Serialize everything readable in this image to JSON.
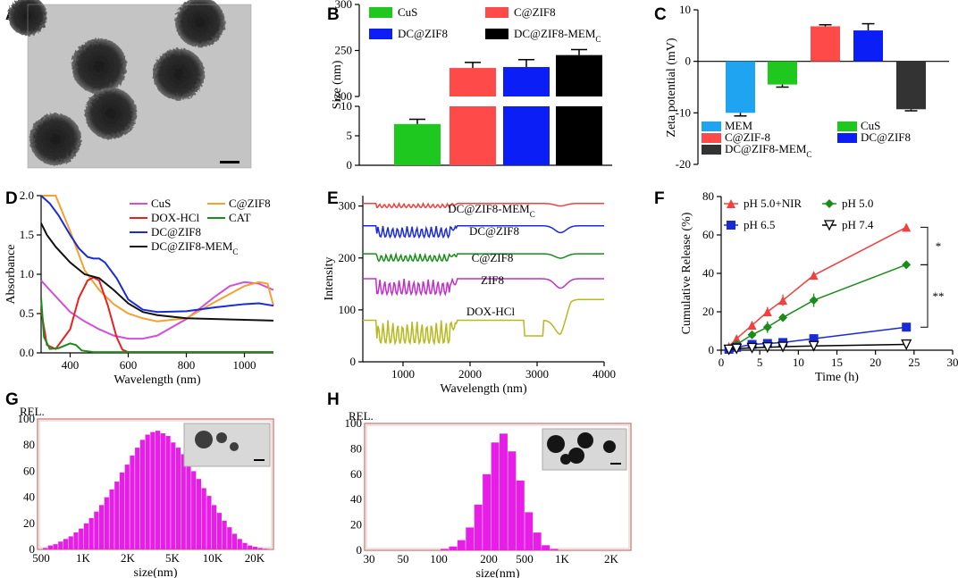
{
  "panels": {
    "A": "A",
    "B": "B",
    "C": "C",
    "D": "D",
    "E": "E",
    "F": "F",
    "G": "G",
    "H": "H"
  },
  "chart_data": [
    {
      "id": "B",
      "type": "bar",
      "categories": [
        "CuS",
        "C@ZIF8",
        "DC@ZIF8",
        "DC@ZIF8-MEMC"
      ],
      "values": [
        7,
        231,
        232,
        245
      ],
      "errors": [
        0.8,
        6,
        8,
        6
      ],
      "colors": [
        "#1ec81e",
        "#ff4a4a",
        "#0a1ef5",
        "#000000"
      ],
      "ylabel": "Size (nm)",
      "ybreak": {
        "lower": [
          0,
          10
        ],
        "upper": [
          200,
          300
        ]
      },
      "yticks_lower": [
        "0",
        "5",
        "10"
      ],
      "yticks_upper": [
        "200",
        "250",
        "300"
      ],
      "legend": [
        "CuS",
        "C@ZIF8",
        "DC@ZIF8",
        "DC@ZIF8-MEMC"
      ]
    },
    {
      "id": "C",
      "type": "bar",
      "categories": [
        "MEM",
        "CuS",
        "C@ZIF-8",
        "DC@ZIF8",
        "DC@ZIF8-MEMC"
      ],
      "values": [
        -10,
        -4.5,
        6.8,
        6,
        -9.3
      ],
      "errors": [
        0.6,
        0.5,
        0.3,
        1.3,
        0.3
      ],
      "colors": [
        "#1ea4f0",
        "#1ec81e",
        "#ff4a4a",
        "#0a1ef5",
        "#333333"
      ],
      "ylabel": "Zeta potential (mV)",
      "ylim": [
        -20,
        10
      ],
      "yticks": [
        "-20",
        "-10",
        "0",
        "10"
      ],
      "legend": [
        "MEM",
        "CuS",
        "C@ZIF-8",
        "DC@ZIF8",
        "DC@ZIF8-MEMC"
      ]
    },
    {
      "id": "D",
      "type": "line",
      "xlabel": "Wavelength (nm)",
      "ylabel": "Absorbance",
      "xlim": [
        300,
        1100
      ],
      "ylim": [
        0,
        2
      ],
      "xticks": [
        "400",
        "600",
        "800",
        "1000"
      ],
      "yticks": [
        "0.0",
        "0.5",
        "1.0",
        "1.5",
        "2.0"
      ],
      "series": [
        {
          "name": "CuS",
          "color": "#d050d8",
          "x": [
            300,
            350,
            400,
            450,
            500,
            550,
            600,
            650,
            700,
            800,
            900,
            950,
            1000,
            1050,
            1100
          ],
          "y": [
            0.92,
            0.72,
            0.52,
            0.4,
            0.3,
            0.22,
            0.18,
            0.18,
            0.22,
            0.43,
            0.72,
            0.85,
            0.9,
            0.88,
            0.8
          ]
        },
        {
          "name": "C@ZIF8",
          "color": "#f5a030",
          "x": [
            300,
            350,
            400,
            450,
            500,
            550,
            600,
            650,
            700,
            800,
            900,
            1000,
            1050,
            1080,
            1100
          ],
          "y": [
            2.0,
            2.0,
            1.55,
            1.05,
            0.8,
            0.62,
            0.5,
            0.44,
            0.4,
            0.44,
            0.65,
            0.85,
            0.9,
            0.88,
            0.6
          ]
        },
        {
          "name": "DOX-HCl",
          "color": "#ea2020",
          "x": [
            300,
            320,
            350,
            400,
            430,
            460,
            480,
            500,
            530,
            560,
            580,
            600,
            650,
            1100
          ],
          "y": [
            0.55,
            0.1,
            0.05,
            0.3,
            0.7,
            0.92,
            0.96,
            0.92,
            0.6,
            0.2,
            0.04,
            0.01,
            0.01,
            0.01
          ]
        },
        {
          "name": "CAT",
          "color": "#1a8c1a",
          "x": [
            300,
            310,
            330,
            360,
            400,
            420,
            440,
            480,
            1100
          ],
          "y": [
            0.7,
            0.2,
            0.05,
            0.06,
            0.12,
            0.1,
            0.03,
            0.01,
            0.01
          ]
        },
        {
          "name": "DC@ZIF8",
          "color": "#1a2ad8",
          "x": [
            300,
            330,
            360,
            400,
            430,
            460,
            480,
            500,
            520,
            560,
            600,
            650,
            700,
            800,
            900,
            1000,
            1050,
            1100
          ],
          "y": [
            2.0,
            1.9,
            1.75,
            1.5,
            1.33,
            1.22,
            1.2,
            1.2,
            1.15,
            0.95,
            0.68,
            0.55,
            0.52,
            0.53,
            0.58,
            0.62,
            0.63,
            0.6
          ]
        },
        {
          "name": "DC@ZIF8-MEMC",
          "color": "#111111",
          "x": [
            300,
            320,
            350,
            400,
            450,
            500,
            550,
            600,
            650,
            700,
            800,
            900,
            1000,
            1100
          ],
          "y": [
            1.65,
            1.5,
            1.35,
            1.15,
            1.0,
            0.95,
            0.8,
            0.63,
            0.52,
            0.48,
            0.44,
            0.43,
            0.42,
            0.41
          ]
        }
      ]
    },
    {
      "id": "E",
      "type": "line",
      "xlabel": "Wavelength (nm)",
      "ylabel": "Intensity",
      "xlim": [
        400,
        4000
      ],
      "ylim": [
        0,
        320
      ],
      "xticks": [
        "1000",
        "2000",
        "3000",
        "4000"
      ],
      "yticks": [
        "0",
        "100",
        "200",
        "300"
      ],
      "series": [
        {
          "name": "DC@ZIF8-MEMC",
          "color": "#f04040",
          "base": 305,
          "amp": 8
        },
        {
          "name": "DC@ZIF8",
          "color": "#1a2ad8",
          "base": 262,
          "amp": 22
        },
        {
          "name": "C@ZIF8",
          "color": "#1a8c1a",
          "base": 208,
          "amp": 14
        },
        {
          "name": "ZIF8",
          "color": "#c030c8",
          "base": 160,
          "amp": 30
        },
        {
          "name": "DOX-HCl",
          "color": "#b8b820",
          "base": 80,
          "amp": 45
        }
      ]
    },
    {
      "id": "F",
      "type": "line",
      "xlabel": "Time (h)",
      "ylabel": "Cumulative Release (%)",
      "xlim": [
        0,
        30
      ],
      "ylim": [
        0,
        80
      ],
      "xticks": [
        "0",
        "5",
        "10",
        "15",
        "20",
        "25",
        "30"
      ],
      "yticks": [
        "0",
        "20",
        "40",
        "60",
        "80"
      ],
      "x": [
        1,
        2,
        4,
        6,
        8,
        12,
        24
      ],
      "series": [
        {
          "name": "pH 5.0+NIR",
          "color": "#f04040",
          "marker": "triangle",
          "y": [
            2,
            6,
            13,
            20,
            26,
            39,
            64
          ],
          "err": [
            0.5,
            1,
            2,
            2.5,
            3,
            1,
            1
          ]
        },
        {
          "name": "pH 5.0",
          "color": "#1a8c1a",
          "marker": "diamond",
          "y": [
            1,
            3,
            8,
            12,
            17,
            26,
            44.5
          ],
          "err": [
            0.5,
            1,
            2,
            3,
            2,
            3.5,
            2
          ]
        },
        {
          "name": "pH 6.5",
          "color": "#1a2ad8",
          "marker": "square",
          "y": [
            0.5,
            1.5,
            3,
            3.5,
            4,
            6,
            12
          ],
          "err": [
            0.3,
            0.5,
            1,
            1,
            1,
            1,
            1
          ]
        },
        {
          "name": "pH 7.4",
          "color": "#000000",
          "marker": "triangle-down",
          "y": [
            0.3,
            0.8,
            1.2,
            1.5,
            1.8,
            2.2,
            3
          ],
          "err": [
            0.2,
            0.3,
            0.3,
            0.3,
            0.3,
            0.3,
            0.3
          ]
        }
      ],
      "significance": [
        "*",
        "**"
      ]
    },
    {
      "id": "G",
      "type": "bar",
      "xlabel": "size(nm)",
      "ylabel": "REL.",
      "ylim": [
        0,
        100
      ],
      "xticks": [
        "500",
        "1K",
        "2K",
        "5K",
        "10K",
        "20K"
      ],
      "yticks": [
        "0",
        "20",
        "40",
        "60",
        "80",
        "100"
      ],
      "values": [
        1,
        3,
        4,
        6,
        8,
        10,
        13,
        16,
        20,
        24,
        29,
        34,
        40,
        46,
        52,
        59,
        65,
        72,
        78,
        84,
        88,
        90,
        91,
        89,
        87,
        82,
        78,
        73,
        67,
        60,
        54,
        47,
        41,
        34,
        28,
        22,
        17,
        12,
        8,
        5,
        3,
        2,
        1,
        0.5
      ],
      "color": "#e81ee8"
    },
    {
      "id": "H",
      "type": "bar",
      "xlabel": "size(nm)",
      "ylabel": "REL.",
      "ylim": [
        0,
        100
      ],
      "xticks": [
        "30",
        "50",
        "100",
        "200",
        "500",
        "1K",
        "2K"
      ],
      "yticks": [
        "0",
        "20",
        "40",
        "60",
        "80",
        "100"
      ],
      "values": [
        1,
        3,
        8,
        18,
        36,
        60,
        85,
        92,
        78,
        55,
        30,
        14,
        4,
        1
      ],
      "color": "#e81ee8"
    }
  ]
}
